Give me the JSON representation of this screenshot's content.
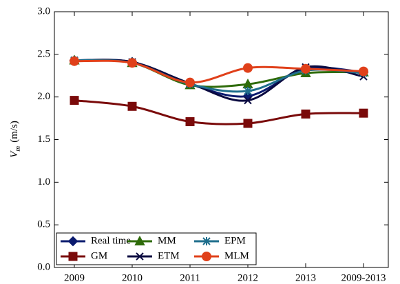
{
  "chart_data": {
    "type": "line",
    "ylabel": {
      "symbol": "V",
      "subscript": "m",
      "unit": "(m/s)"
    },
    "categories": [
      "2009",
      "2010",
      "2011",
      "2012",
      "2013",
      "2009-2013"
    ],
    "series": [
      {
        "name": "Real time",
        "color": "#0a1a6e",
        "marker": "diamond",
        "values": [
          2.43,
          2.41,
          2.15,
          2.01,
          2.33,
          2.29
        ]
      },
      {
        "name": "GM",
        "color": "#7a0a0a",
        "marker": "square",
        "values": [
          1.96,
          1.89,
          1.71,
          1.69,
          1.8,
          1.81
        ]
      },
      {
        "name": "MM",
        "color": "#2e6b0a",
        "marker": "triangle",
        "values": [
          2.43,
          2.4,
          2.14,
          2.15,
          2.28,
          2.29
        ]
      },
      {
        "name": "ETM",
        "color": "#0a0a40",
        "marker": "x",
        "values": [
          2.43,
          2.41,
          2.16,
          1.96,
          2.35,
          2.24
        ]
      },
      {
        "name": "EPM",
        "color": "#1e6e8c",
        "marker": "asterisk",
        "values": [
          2.43,
          2.4,
          2.15,
          2.07,
          2.31,
          2.28
        ]
      },
      {
        "name": "MLM",
        "color": "#e0401a",
        "marker": "circle",
        "values": [
          2.42,
          2.4,
          2.17,
          2.34,
          2.33,
          2.3
        ]
      }
    ],
    "ylim": [
      0,
      3
    ],
    "yticks": [
      {
        "value": 0,
        "label": "0.0"
      },
      0.5,
      {
        "value": 1,
        "label": "1.0"
      },
      1.5,
      {
        "value": 2,
        "label": "2.0"
      },
      2.5,
      {
        "value": 3,
        "label": "3.0"
      }
    ],
    "legend": "lower left"
  }
}
